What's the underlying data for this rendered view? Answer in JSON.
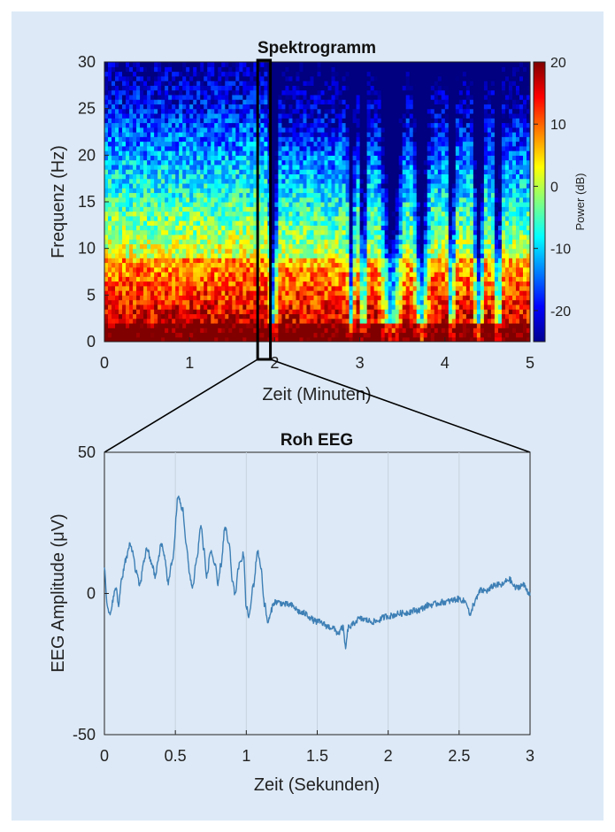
{
  "chart_data": [
    {
      "type": "heatmap",
      "title": "Spektrogramm",
      "xlabel": "Zeit (Minuten)",
      "ylabel": "Frequenz (Hz)",
      "xlim": [
        0,
        5
      ],
      "ylim": [
        0,
        30
      ],
      "xticks": [
        0,
        1,
        2,
        3,
        4,
        5
      ],
      "yticks": [
        0,
        5,
        10,
        15,
        20,
        25,
        30
      ],
      "colorbar": {
        "label": "Power (dB)",
        "range": [
          -25,
          20
        ],
        "ticks": [
          -20,
          -10,
          0,
          10,
          20
        ],
        "colormap": "jet"
      },
      "highlight_window_minutes": [
        1.8,
        1.95
      ],
      "power_profile": {
        "description_of_structure": "low frequencies high power; deep low-power bursts after ~2.8 min",
        "low_power_bands_minutes": [
          [
            1.95,
            2.02
          ],
          [
            2.88,
            2.92
          ],
          [
            3.02,
            3.06
          ],
          [
            3.25,
            3.5
          ],
          [
            3.65,
            3.8
          ],
          [
            4.05,
            4.1
          ],
          [
            4.35,
            4.45
          ],
          [
            4.6,
            4.65
          ]
        ]
      }
    },
    {
      "type": "line",
      "title": "Roh EEG",
      "xlabel": "Zeit (Sekunden)",
      "ylabel": "EEG Amplitude (μV)",
      "xlim": [
        0,
        3
      ],
      "ylim": [
        -50,
        50
      ],
      "xticks": [
        0,
        0.5,
        1,
        1.5,
        2,
        2.5,
        3
      ],
      "yticks": [
        -50,
        0,
        50
      ],
      "series": [
        {
          "color": "#3d7fb5",
          "x": [
            0,
            0.02,
            0.04,
            0.06,
            0.08,
            0.1,
            0.12,
            0.15,
            0.18,
            0.2,
            0.22,
            0.25,
            0.28,
            0.3,
            0.33,
            0.36,
            0.38,
            0.4,
            0.42,
            0.45,
            0.48,
            0.52,
            0.55,
            0.58,
            0.6,
            0.62,
            0.65,
            0.68,
            0.7,
            0.72,
            0.75,
            0.78,
            0.8,
            0.82,
            0.85,
            0.88,
            0.9,
            0.92,
            0.95,
            0.98,
            1.0,
            1.02,
            1.05,
            1.08,
            1.1,
            1.13,
            1.15,
            1.2,
            1.3,
            1.4,
            1.5,
            1.6,
            1.65,
            1.68,
            1.7,
            1.72,
            1.8,
            1.9,
            2.0,
            2.1,
            2.2,
            2.3,
            2.4,
            2.5,
            2.55,
            2.58,
            2.6,
            2.62,
            2.65,
            2.7,
            2.75,
            2.8,
            2.85,
            2.9,
            2.95,
            3.0
          ],
          "values": [
            10,
            -5,
            -8,
            -2,
            2,
            -4,
            5,
            12,
            17,
            15,
            8,
            3,
            12,
            16,
            11,
            6,
            12,
            18,
            14,
            4,
            12,
            34,
            30,
            16,
            7,
            2,
            12,
            24,
            16,
            6,
            15,
            10,
            3,
            10,
            23,
            17,
            5,
            0,
            10,
            14,
            -5,
            -8,
            3,
            15,
            10,
            -4,
            -10,
            -3,
            -4,
            -7,
            -10,
            -12,
            -14,
            -12,
            -19,
            -12,
            -9,
            -10,
            -8,
            -7,
            -6,
            -4,
            -3,
            -2,
            -3,
            -8,
            -4,
            -2,
            1,
            1,
            3,
            3,
            5,
            2,
            3,
            0
          ]
        }
      ]
    }
  ]
}
